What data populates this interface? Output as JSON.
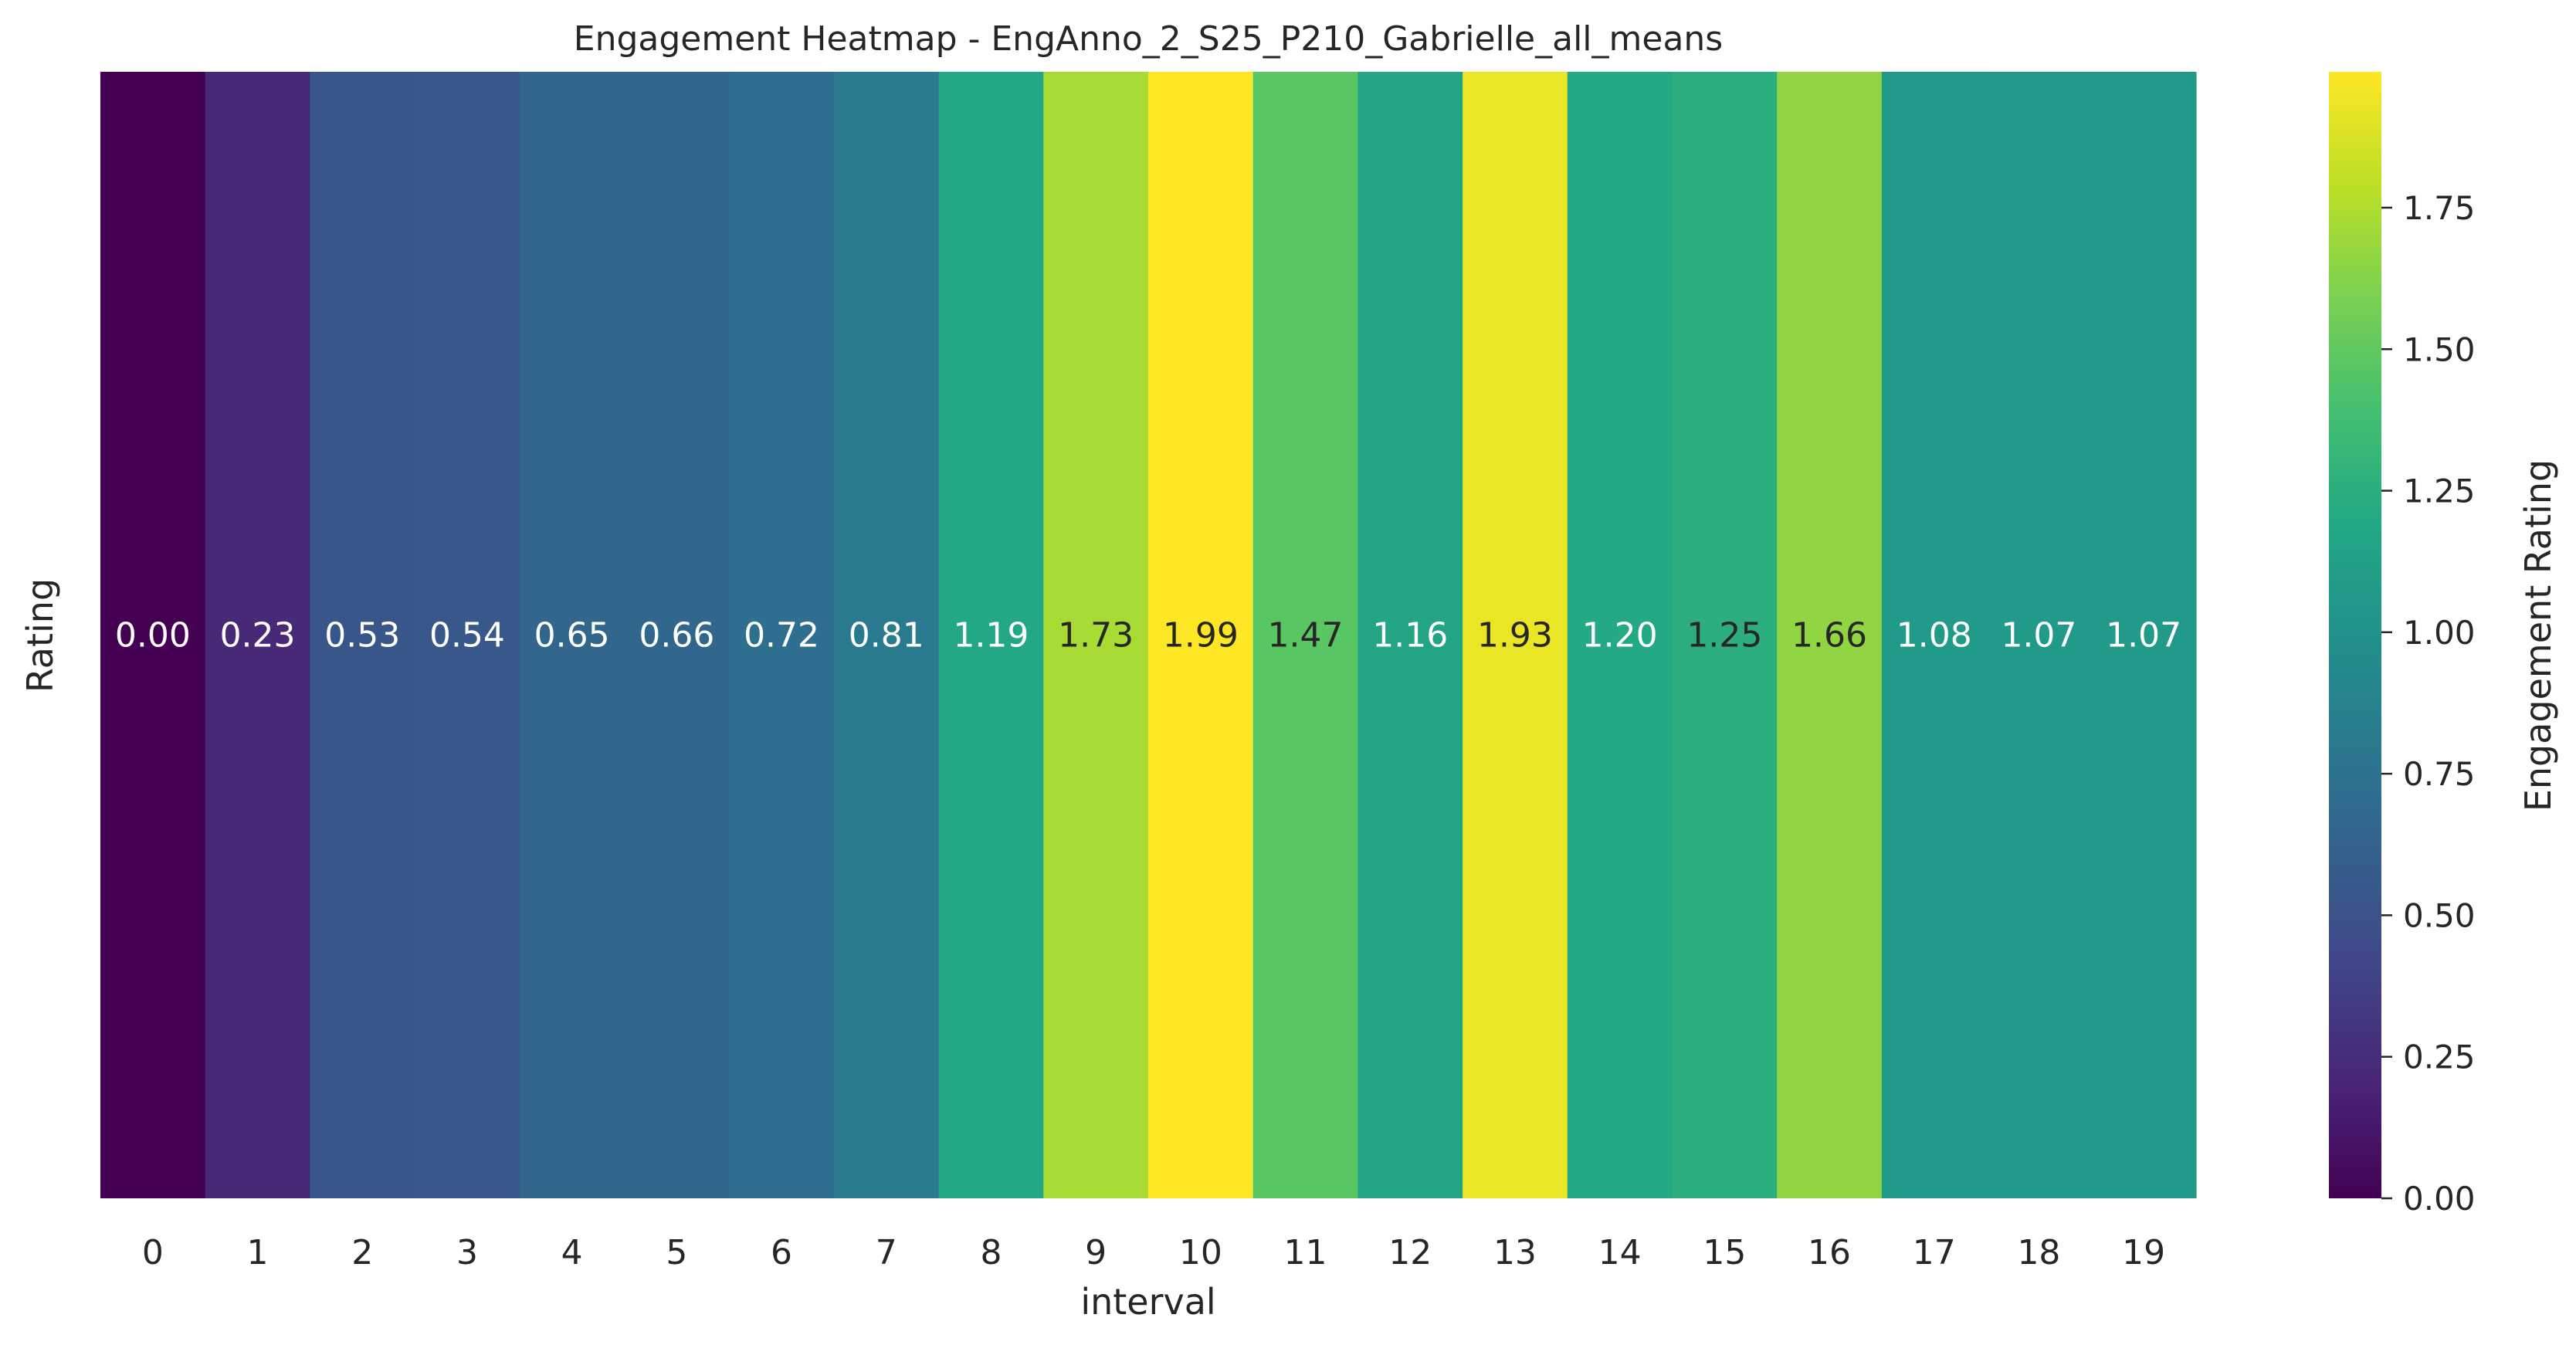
{
  "chart_data": {
    "type": "heatmap",
    "title": "Engagement Heatmap - EngAnno_2_S25_P210_Gabrielle_all_means",
    "xlabel": "interval",
    "ylabel": "Rating",
    "x": [
      "0",
      "1",
      "2",
      "3",
      "4",
      "5",
      "6",
      "7",
      "8",
      "9",
      "10",
      "11",
      "12",
      "13",
      "14",
      "15",
      "16",
      "17",
      "18",
      "19"
    ],
    "values": [
      0.0,
      0.23,
      0.53,
      0.54,
      0.65,
      0.66,
      0.72,
      0.81,
      1.19,
      1.73,
      1.99,
      1.47,
      1.16,
      1.93,
      1.2,
      1.25,
      1.66,
      1.08,
      1.07,
      1.07
    ],
    "value_labels": [
      "0.00",
      "0.23",
      "0.53",
      "0.54",
      "0.65",
      "0.66",
      "0.72",
      "0.81",
      "1.19",
      "1.73",
      "1.99",
      "1.47",
      "1.16",
      "1.93",
      "1.20",
      "1.25",
      "1.66",
      "1.08",
      "1.07",
      "1.07"
    ],
    "colormap": "viridis",
    "colorbar": {
      "label": "Engagement Rating",
      "range": [
        0,
        1.99
      ],
      "ticks": [
        0.0,
        0.25,
        0.5,
        0.75,
        1.0,
        1.25,
        1.5,
        1.75
      ],
      "tick_labels": [
        "0.00",
        "0.25",
        "0.50",
        "0.75",
        "1.00",
        "1.25",
        "1.50",
        "1.75"
      ]
    },
    "grid": false
  }
}
